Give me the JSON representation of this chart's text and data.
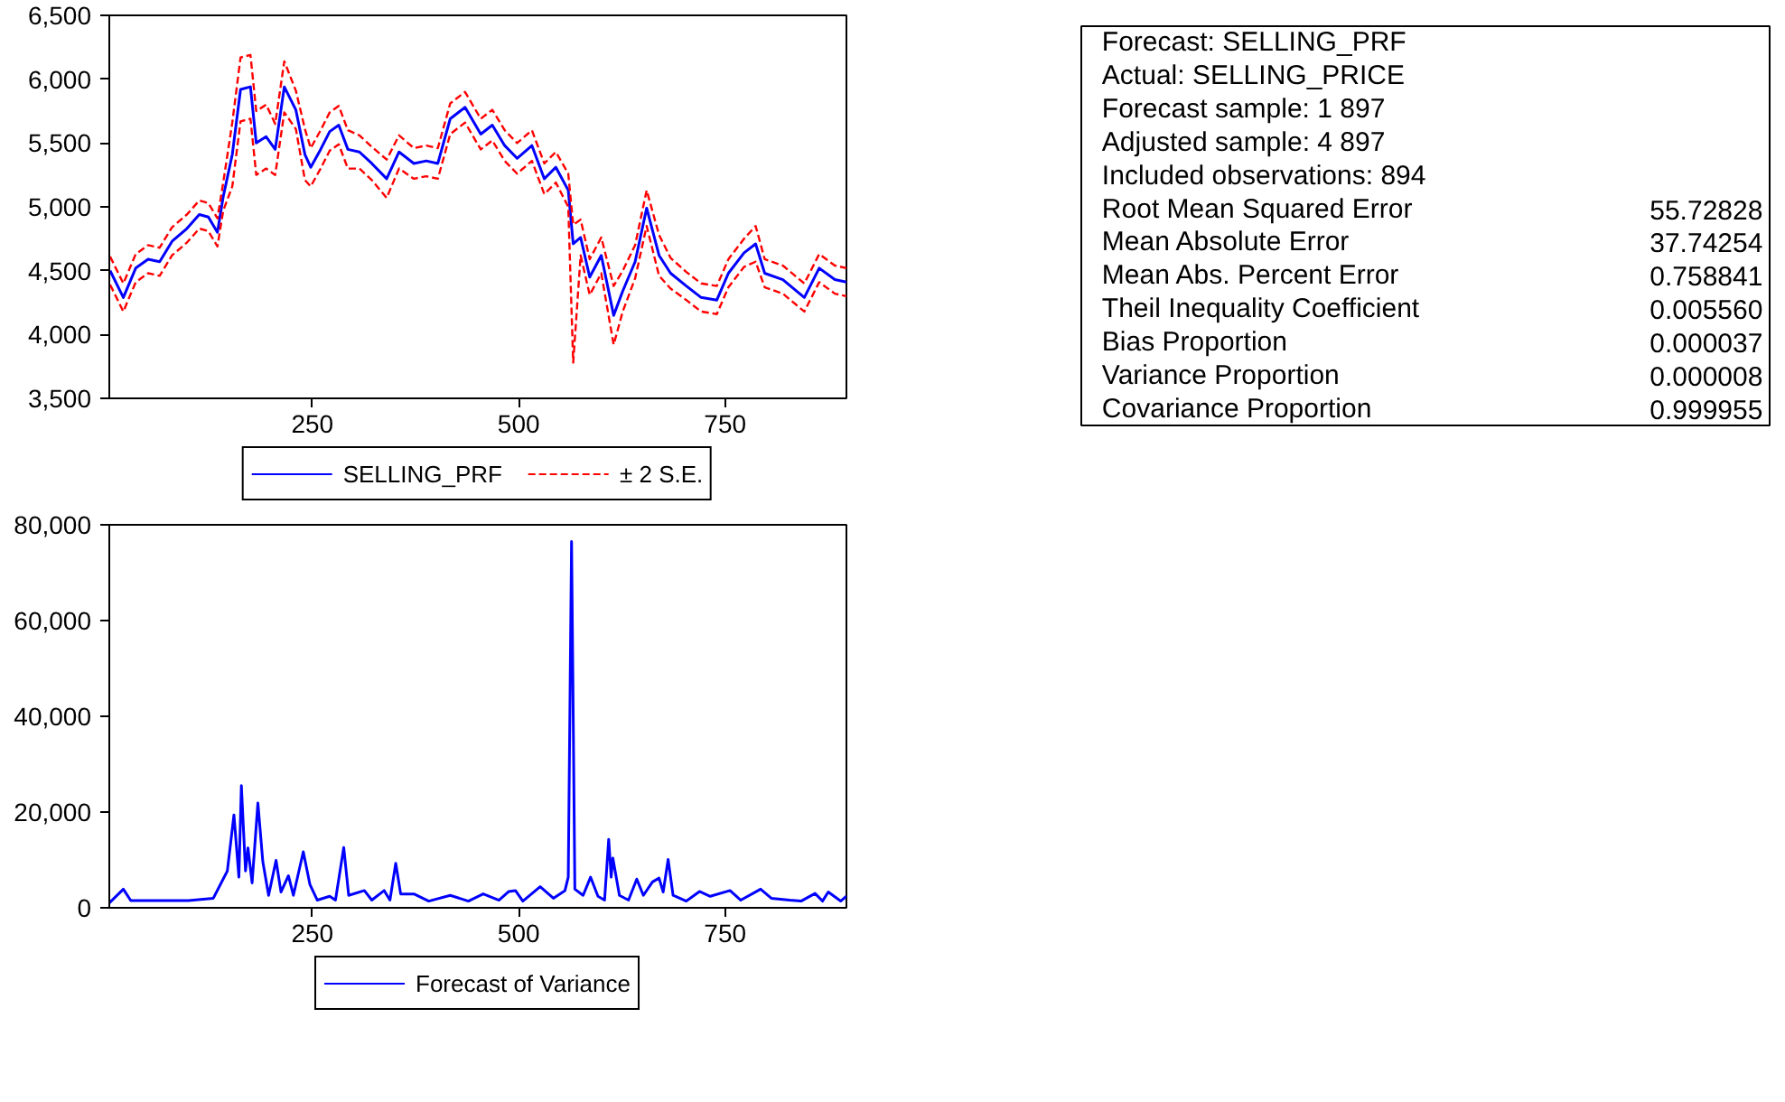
{
  "chart_data": [
    {
      "type": "line",
      "legend": "bottom",
      "xlim": [
        4,
        897
      ],
      "ylim": [
        3500,
        6500
      ],
      "xticks": [
        250,
        500,
        750
      ],
      "yticks": [
        {
          "value": 3500,
          "label": "3,500"
        },
        {
          "value": 4000,
          "label": "4,000"
        },
        {
          "value": 4500,
          "label": "4,500"
        },
        {
          "value": 5000,
          "label": "5,000"
        },
        {
          "value": 5500,
          "label": "5,500"
        },
        {
          "value": 6000,
          "label": "6,000"
        },
        {
          "value": 6500,
          "label": "6,500"
        }
      ],
      "x": [
        5,
        21,
        36,
        51,
        65,
        80,
        98,
        113,
        124,
        135,
        142,
        153,
        163,
        175,
        182,
        194,
        205,
        216,
        230,
        241,
        248,
        260,
        271,
        282,
        293,
        307,
        322,
        340,
        355,
        373,
        388,
        402,
        417,
        435,
        454,
        468,
        483,
        498,
        516,
        531,
        545,
        560,
        566,
        575,
        586,
        600,
        615,
        626,
        641,
        655,
        670,
        684,
        703,
        721,
        740,
        754,
        773,
        787,
        798,
        820,
        846,
        864,
        883,
        897
      ],
      "series": [
        {
          "name": "SELLING_PRF",
          "color": "#0000ff",
          "line_style": "solid",
          "values": [
            4500,
            4290,
            4520,
            4590,
            4570,
            4730,
            4830,
            4940,
            4920,
            4800,
            5080,
            5410,
            5920,
            5940,
            5500,
            5550,
            5450,
            5940,
            5760,
            5410,
            5310,
            5450,
            5590,
            5640,
            5450,
            5430,
            5340,
            5220,
            5430,
            5340,
            5360,
            5340,
            5690,
            5780,
            5570,
            5640,
            5480,
            5380,
            5480,
            5220,
            5310,
            5130,
            4710,
            4760,
            4450,
            4620,
            4150,
            4340,
            4570,
            4990,
            4620,
            4480,
            4380,
            4290,
            4270,
            4480,
            4640,
            4710,
            4480,
            4430,
            4290,
            4520,
            4430,
            4410
          ]
        },
        {
          "name": "± 2 S.E.",
          "color": "#ff0000",
          "line_style": "dashed",
          "values": [
            4610,
            4400,
            4630,
            4700,
            4680,
            4840,
            4940,
            5050,
            5030,
            4910,
            5190,
            5660,
            6170,
            6190,
            5750,
            5800,
            5650,
            6140,
            5910,
            5610,
            5460,
            5600,
            5740,
            5790,
            5600,
            5560,
            5470,
            5370,
            5560,
            5460,
            5480,
            5460,
            5810,
            5900,
            5690,
            5760,
            5600,
            5500,
            5600,
            5340,
            5430,
            5260,
            4860,
            4900,
            4590,
            4760,
            4380,
            4500,
            4700,
            5130,
            4780,
            4600,
            4490,
            4400,
            4380,
            4590,
            4750,
            4850,
            4590,
            4540,
            4400,
            4630,
            4540,
            4520
          ]
        },
        {
          "color": "#ff0000",
          "line_style": "dashed",
          "values": [
            4390,
            4180,
            4410,
            4480,
            4460,
            4620,
            4720,
            4830,
            4810,
            4690,
            4970,
            5160,
            5670,
            5690,
            5250,
            5300,
            5250,
            5740,
            5610,
            5210,
            5160,
            5300,
            5440,
            5490,
            5300,
            5300,
            5210,
            5070,
            5300,
            5220,
            5240,
            5220,
            5570,
            5660,
            5450,
            5520,
            5360,
            5260,
            5360,
            5100,
            5190,
            5000,
            3780,
            4620,
            4310,
            4480,
            3920,
            4180,
            4440,
            4850,
            4460,
            4360,
            4270,
            4180,
            4160,
            4370,
            4530,
            4570,
            4370,
            4320,
            4180,
            4410,
            4320,
            4300
          ]
        }
      ]
    },
    {
      "type": "other",
      "annotations": [
        "Forecast: SELLING_PRF",
        "Actual: SELLING_PRICE",
        "Forecast sample: 1 897",
        "Adjusted sample: 4 897",
        "Included observations: 894"
      ],
      "categories": [
        "Root Mean Squared Error",
        "Mean Absolute Error",
        "Mean Abs. Percent Error",
        "Theil Inequality Coefficient",
        "Bias Proportion",
        "Variance Proportion",
        "Covariance Proportion"
      ],
      "value_labels": [
        "55.72828",
        "37.74254",
        "0.758841",
        "0.005560",
        "0.000037",
        "0.000008",
        "0.999955"
      ]
    },
    {
      "type": "line",
      "legend": "bottom",
      "xlim": [
        4,
        897
      ],
      "ylim": [
        0,
        80000
      ],
      "xticks": [
        250,
        500,
        750
      ],
      "yticks": [
        0,
        {
          "value": 20000,
          "label": "20,000"
        },
        {
          "value": 40000,
          "label": "40,000"
        },
        {
          "value": 60000,
          "label": "60,000"
        },
        {
          "value": 80000,
          "label": "80,000"
        }
      ],
      "x": [
        4,
        21,
        30,
        60,
        100,
        130,
        147,
        155,
        161,
        164,
        169,
        172,
        177,
        184,
        190,
        197,
        206,
        212,
        221,
        227,
        239,
        247,
        256,
        271,
        278,
        288,
        294,
        313,
        322,
        337,
        344,
        351,
        357,
        373,
        391,
        417,
        439,
        457,
        476,
        488,
        496,
        505,
        526,
        542,
        556,
        560,
        564,
        568,
        578,
        587,
        596,
        604,
        609,
        612,
        614,
        622,
        633,
        643,
        651,
        662,
        670,
        675,
        681,
        687,
        703,
        719,
        732,
        756,
        769,
        793,
        806,
        828,
        842,
        859,
        868,
        875,
        890,
        897
      ],
      "series": [
        {
          "name": "Forecast of Variance",
          "color": "#0000ff",
          "line_style": "solid",
          "values": [
            1000,
            3900,
            1500,
            1500,
            1500,
            2000,
            7700,
            19400,
            6400,
            25500,
            7700,
            12500,
            5200,
            21900,
            9600,
            2600,
            9900,
            3300,
            6700,
            2600,
            11700,
            4900,
            1600,
            2400,
            1600,
            12600,
            2600,
            3600,
            1600,
            3600,
            1600,
            9300,
            2900,
            2900,
            1400,
            2600,
            1400,
            2900,
            1600,
            3400,
            3600,
            1400,
            4400,
            2000,
            3600,
            6400,
            76500,
            3900,
            2600,
            6400,
            2400,
            1600,
            14300,
            6400,
            10400,
            2600,
            1600,
            6000,
            2600,
            5400,
            6200,
            3300,
            10100,
            2600,
            1400,
            3400,
            2400,
            3600,
            1600,
            3900,
            2000,
            1600,
            1400,
            3000,
            1400,
            3300,
            1400,
            2400
          ]
        }
      ]
    }
  ]
}
